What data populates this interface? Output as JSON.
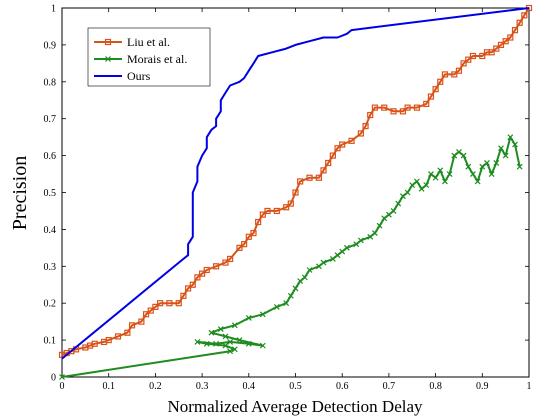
{
  "chart_data": {
    "type": "line",
    "xlabel": "Normalized Average Detection Delay",
    "ylabel": "Precision",
    "xlim": [
      0,
      1
    ],
    "ylim": [
      0,
      1
    ],
    "xticks": [
      "0",
      "0.1",
      "0.2",
      "0.3",
      "0.4",
      "0.5",
      "0.6",
      "0.7",
      "0.8",
      "0.9",
      "1"
    ],
    "yticks": [
      "0",
      "0.1",
      "0.2",
      "0.3",
      "0.4",
      "0.5",
      "0.6",
      "0.7",
      "0.8",
      "0.9",
      "1"
    ],
    "grid": false,
    "legend_position": "top-left",
    "series": [
      {
        "name": "Liu et al.",
        "color": "#D95319",
        "marker": "square",
        "points": [
          [
            0.0,
            0.06
          ],
          [
            0.01,
            0.065
          ],
          [
            0.02,
            0.07
          ],
          [
            0.03,
            0.075
          ],
          [
            0.05,
            0.08
          ],
          [
            0.06,
            0.085
          ],
          [
            0.07,
            0.09
          ],
          [
            0.09,
            0.095
          ],
          [
            0.1,
            0.1
          ],
          [
            0.12,
            0.11
          ],
          [
            0.14,
            0.12
          ],
          [
            0.15,
            0.14
          ],
          [
            0.17,
            0.15
          ],
          [
            0.18,
            0.17
          ],
          [
            0.19,
            0.18
          ],
          [
            0.2,
            0.19
          ],
          [
            0.21,
            0.2
          ],
          [
            0.23,
            0.2
          ],
          [
            0.25,
            0.2
          ],
          [
            0.26,
            0.22
          ],
          [
            0.27,
            0.24
          ],
          [
            0.28,
            0.25
          ],
          [
            0.29,
            0.27
          ],
          [
            0.3,
            0.28
          ],
          [
            0.31,
            0.29
          ],
          [
            0.33,
            0.3
          ],
          [
            0.35,
            0.31
          ],
          [
            0.36,
            0.32
          ],
          [
            0.38,
            0.35
          ],
          [
            0.39,
            0.36
          ],
          [
            0.4,
            0.38
          ],
          [
            0.41,
            0.39
          ],
          [
            0.42,
            0.42
          ],
          [
            0.43,
            0.44
          ],
          [
            0.44,
            0.45
          ],
          [
            0.46,
            0.45
          ],
          [
            0.48,
            0.46
          ],
          [
            0.49,
            0.47
          ],
          [
            0.5,
            0.5
          ],
          [
            0.51,
            0.53
          ],
          [
            0.53,
            0.54
          ],
          [
            0.55,
            0.54
          ],
          [
            0.56,
            0.56
          ],
          [
            0.57,
            0.58
          ],
          [
            0.58,
            0.6
          ],
          [
            0.59,
            0.62
          ],
          [
            0.6,
            0.63
          ],
          [
            0.62,
            0.64
          ],
          [
            0.64,
            0.66
          ],
          [
            0.65,
            0.68
          ],
          [
            0.66,
            0.71
          ],
          [
            0.67,
            0.73
          ],
          [
            0.69,
            0.73
          ],
          [
            0.71,
            0.72
          ],
          [
            0.73,
            0.72
          ],
          [
            0.74,
            0.73
          ],
          [
            0.76,
            0.73
          ],
          [
            0.78,
            0.74
          ],
          [
            0.79,
            0.76
          ],
          [
            0.8,
            0.78
          ],
          [
            0.81,
            0.8
          ],
          [
            0.82,
            0.82
          ],
          [
            0.84,
            0.82
          ],
          [
            0.85,
            0.83
          ],
          [
            0.86,
            0.85
          ],
          [
            0.87,
            0.86
          ],
          [
            0.88,
            0.87
          ],
          [
            0.9,
            0.87
          ],
          [
            0.91,
            0.88
          ],
          [
            0.92,
            0.88
          ],
          [
            0.93,
            0.89
          ],
          [
            0.94,
            0.9
          ],
          [
            0.95,
            0.91
          ],
          [
            0.96,
            0.92
          ],
          [
            0.97,
            0.94
          ],
          [
            0.98,
            0.96
          ],
          [
            0.99,
            0.98
          ],
          [
            1.0,
            1.0
          ]
        ]
      },
      {
        "name": "Morais et al.",
        "color": "#1E8C1E",
        "marker": "x",
        "points": [
          [
            0.0,
            0.0
          ],
          [
            0.36,
            0.07
          ],
          [
            0.37,
            0.075
          ],
          [
            0.35,
            0.085
          ],
          [
            0.31,
            0.09
          ],
          [
            0.29,
            0.095
          ],
          [
            0.33,
            0.09
          ],
          [
            0.36,
            0.095
          ],
          [
            0.4,
            0.09
          ],
          [
            0.43,
            0.085
          ],
          [
            0.38,
            0.1
          ],
          [
            0.35,
            0.11
          ],
          [
            0.32,
            0.12
          ],
          [
            0.34,
            0.13
          ],
          [
            0.37,
            0.14
          ],
          [
            0.4,
            0.16
          ],
          [
            0.43,
            0.17
          ],
          [
            0.46,
            0.19
          ],
          [
            0.48,
            0.2
          ],
          [
            0.49,
            0.22
          ],
          [
            0.5,
            0.24
          ],
          [
            0.51,
            0.26
          ],
          [
            0.52,
            0.27
          ],
          [
            0.53,
            0.29
          ],
          [
            0.55,
            0.3
          ],
          [
            0.56,
            0.31
          ],
          [
            0.58,
            0.32
          ],
          [
            0.59,
            0.33
          ],
          [
            0.6,
            0.34
          ],
          [
            0.61,
            0.35
          ],
          [
            0.63,
            0.36
          ],
          [
            0.64,
            0.37
          ],
          [
            0.66,
            0.38
          ],
          [
            0.67,
            0.39
          ],
          [
            0.68,
            0.41
          ],
          [
            0.69,
            0.43
          ],
          [
            0.7,
            0.44
          ],
          [
            0.71,
            0.45
          ],
          [
            0.72,
            0.47
          ],
          [
            0.73,
            0.49
          ],
          [
            0.74,
            0.5
          ],
          [
            0.75,
            0.52
          ],
          [
            0.76,
            0.53
          ],
          [
            0.77,
            0.51
          ],
          [
            0.78,
            0.52
          ],
          [
            0.79,
            0.55
          ],
          [
            0.8,
            0.54
          ],
          [
            0.81,
            0.56
          ],
          [
            0.82,
            0.53
          ],
          [
            0.83,
            0.55
          ],
          [
            0.84,
            0.6
          ],
          [
            0.85,
            0.61
          ],
          [
            0.86,
            0.6
          ],
          [
            0.87,
            0.57
          ],
          [
            0.88,
            0.55
          ],
          [
            0.89,
            0.53
          ],
          [
            0.9,
            0.57
          ],
          [
            0.91,
            0.58
          ],
          [
            0.92,
            0.55
          ],
          [
            0.93,
            0.58
          ],
          [
            0.94,
            0.62
          ],
          [
            0.95,
            0.6
          ],
          [
            0.96,
            0.65
          ],
          [
            0.97,
            0.63
          ],
          [
            0.98,
            0.57
          ]
        ]
      },
      {
        "name": "Ours",
        "color": "#0000E6",
        "marker": "none",
        "points": [
          [
            0.0,
            0.05
          ],
          [
            0.26,
            0.32
          ],
          [
            0.27,
            0.33
          ],
          [
            0.27,
            0.36
          ],
          [
            0.28,
            0.38
          ],
          [
            0.28,
            0.42
          ],
          [
            0.28,
            0.45
          ],
          [
            0.28,
            0.5
          ],
          [
            0.29,
            0.53
          ],
          [
            0.29,
            0.57
          ],
          [
            0.3,
            0.6
          ],
          [
            0.31,
            0.62
          ],
          [
            0.31,
            0.65
          ],
          [
            0.32,
            0.67
          ],
          [
            0.33,
            0.68
          ],
          [
            0.33,
            0.7
          ],
          [
            0.34,
            0.72
          ],
          [
            0.34,
            0.75
          ],
          [
            0.35,
            0.77
          ],
          [
            0.36,
            0.79
          ],
          [
            0.38,
            0.8
          ],
          [
            0.39,
            0.81
          ],
          [
            0.4,
            0.83
          ],
          [
            0.41,
            0.85
          ],
          [
            0.42,
            0.87
          ],
          [
            0.45,
            0.88
          ],
          [
            0.48,
            0.89
          ],
          [
            0.5,
            0.9
          ],
          [
            0.53,
            0.91
          ],
          [
            0.56,
            0.92
          ],
          [
            0.59,
            0.92
          ],
          [
            0.61,
            0.93
          ],
          [
            0.62,
            0.94
          ],
          [
            1.0,
            1.0
          ]
        ]
      }
    ]
  }
}
